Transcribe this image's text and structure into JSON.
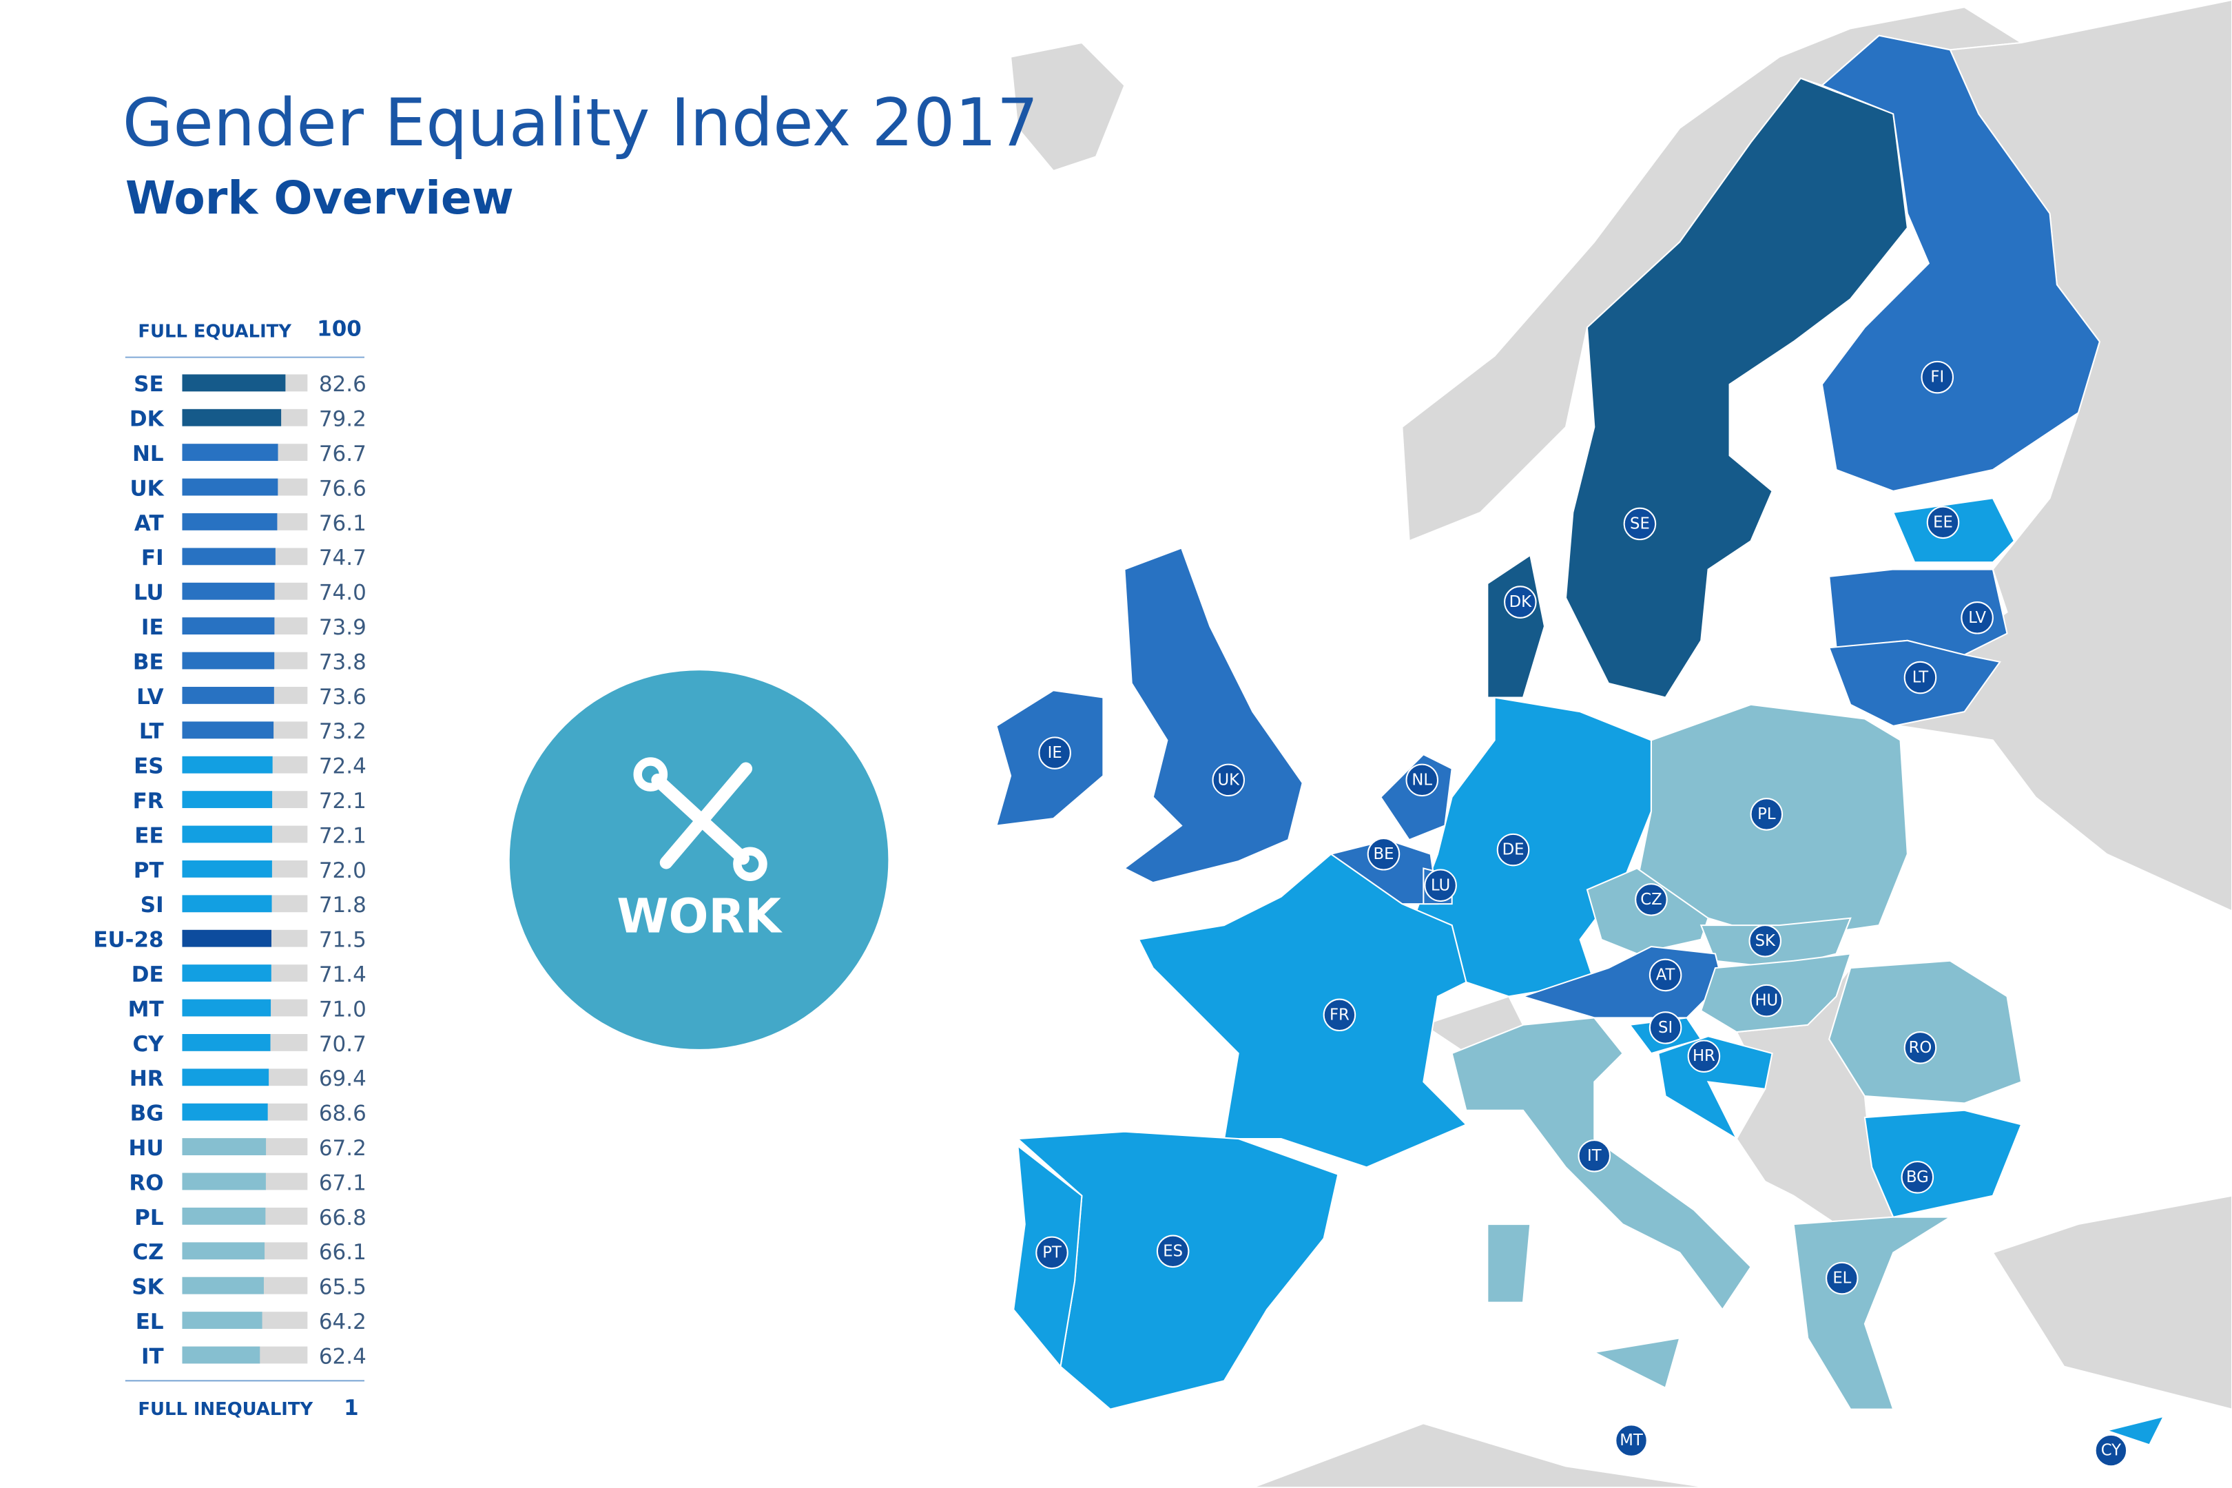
{
  "chart_data": {
    "type": "bar",
    "title": "Gender Equality Index 2017",
    "subtitle": "Work Overview",
    "top_label": "FULL EQUALITY",
    "bottom_label": "FULL INEQUALITY",
    "badge": "WORK",
    "xlim": [
      1,
      100
    ],
    "categories": [
      "SE",
      "DK",
      "NL",
      "UK",
      "AT",
      "FI",
      "LU",
      "IE",
      "BE",
      "LV",
      "LT",
      "ES",
      "FR",
      "EE",
      "PT",
      "SI",
      "EU-28",
      "DE",
      "MT",
      "CY",
      "HR",
      "BG",
      "HU",
      "RO",
      "PL",
      "CZ",
      "SK",
      "EL",
      "IT"
    ],
    "values": [
      82.6,
      79.2,
      76.7,
      76.6,
      76.1,
      74.7,
      74.0,
      73.9,
      73.8,
      73.6,
      73.2,
      72.4,
      72.1,
      72.1,
      72.0,
      71.8,
      71.5,
      71.4,
      71.0,
      70.7,
      69.4,
      68.6,
      67.2,
      67.1,
      66.8,
      66.1,
      65.5,
      64.2,
      62.4
    ],
    "value_labels": [
      "82.6",
      "79.2",
      "76.7",
      "76.6",
      "76.1",
      "74.7",
      "74.0",
      "73.9",
      "73.8",
      "73.6",
      "73.2",
      "72.4",
      "72.1",
      "72.1",
      "72.0",
      "71.8",
      "71.5",
      "71.4",
      "71.0",
      "70.7",
      "69.4",
      "68.6",
      "67.2",
      "67.1",
      "66.8",
      "66.1",
      "65.5",
      "64.2",
      "62.4"
    ],
    "colors": [
      "#155a8a",
      "#155a8a",
      "#2872c2",
      "#2872c2",
      "#2872c2",
      "#2872c2",
      "#2872c2",
      "#2872c2",
      "#2872c2",
      "#2872c2",
      "#2872c2",
      "#129fe2",
      "#129fe2",
      "#129fe2",
      "#129fe2",
      "#129fe2",
      "#0d4c9e",
      "#129fe2",
      "#129fe2",
      "#129fe2",
      "#129fe2",
      "#129fe2",
      "#86bfd0",
      "#86bfd0",
      "#86bfd0",
      "#86bfd0",
      "#86bfd0",
      "#86bfd0",
      "#86bfd0"
    ]
  },
  "map": {
    "labels": [
      "FI",
      "SE",
      "EE",
      "LV",
      "LT",
      "DK",
      "IE",
      "UK",
      "NL",
      "BE",
      "LU",
      "DE",
      "PL",
      "CZ",
      "SK",
      "AT",
      "HU",
      "SI",
      "HR",
      "RO",
      "FR",
      "IT",
      "BG",
      "PT",
      "ES",
      "EL",
      "MT",
      "CY"
    ]
  }
}
